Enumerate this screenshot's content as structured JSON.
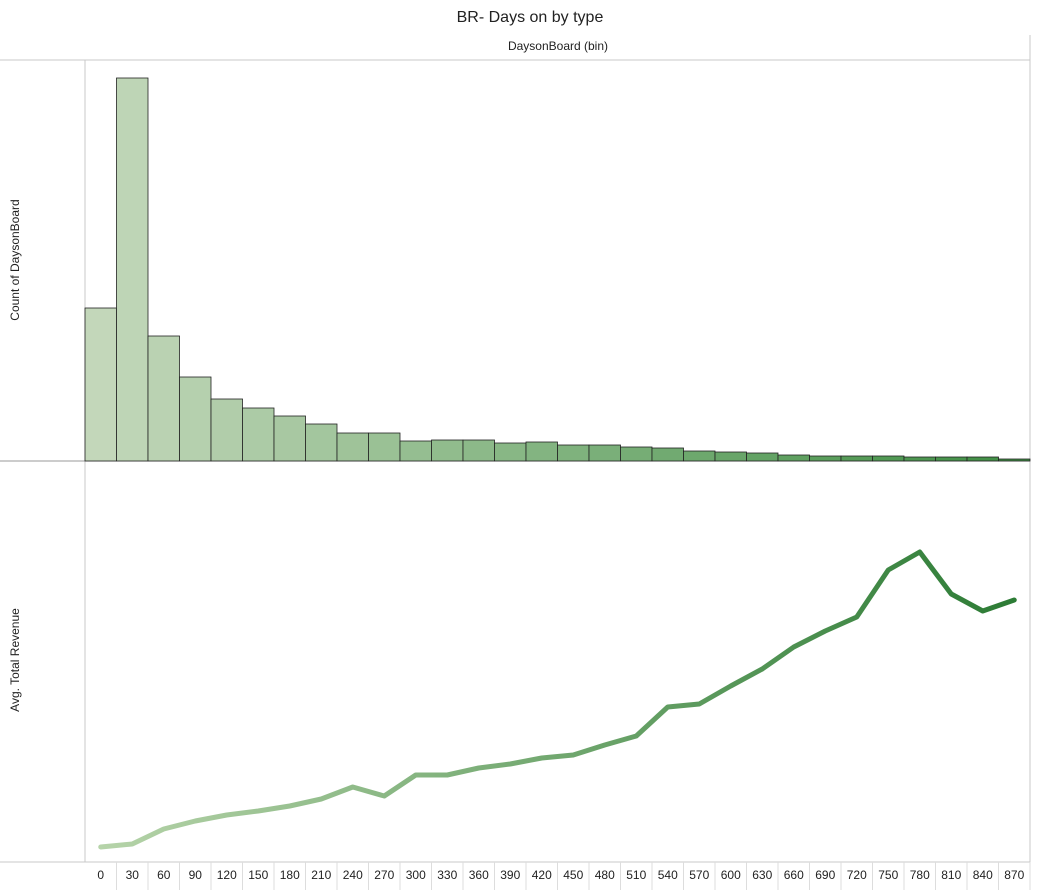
{
  "chart_data": [
    {
      "type": "bar",
      "title": "BR- Days on by type",
      "x_label": "DaysonBoard (bin)",
      "y_label": "Count of DaysonBoard",
      "categories": [
        "0",
        "30",
        "60",
        "90",
        "120",
        "150",
        "180",
        "210",
        "240",
        "270",
        "300",
        "330",
        "360",
        "390",
        "420",
        "450",
        "480",
        "510",
        "540",
        "570",
        "600",
        "630",
        "660",
        "690",
        "720",
        "750",
        "780",
        "810",
        "840",
        "870"
      ],
      "values": [
        153,
        383,
        125,
        84,
        62,
        53,
        45,
        37,
        28,
        28,
        20,
        21,
        21,
        18,
        19,
        16,
        16,
        14,
        13,
        10,
        9,
        8,
        6,
        5,
        5,
        5,
        4,
        4,
        4,
        2
      ],
      "ylim": [
        0,
        400
      ],
      "color_range": [
        "#c3d7ba",
        "#3f8f44"
      ]
    },
    {
      "type": "line",
      "y_label": "Avg. Total Revenue",
      "values": [
        15,
        18,
        33,
        41,
        47,
        51,
        56,
        63,
        75,
        66,
        87,
        87,
        94,
        98,
        104,
        107,
        117,
        126,
        155,
        158,
        176,
        193,
        215,
        231,
        245,
        292,
        310,
        268,
        251,
        262
      ],
      "ylim": [
        0,
        400
      ],
      "color_range": [
        "#b8d5ab",
        "#2a7a33"
      ]
    }
  ]
}
